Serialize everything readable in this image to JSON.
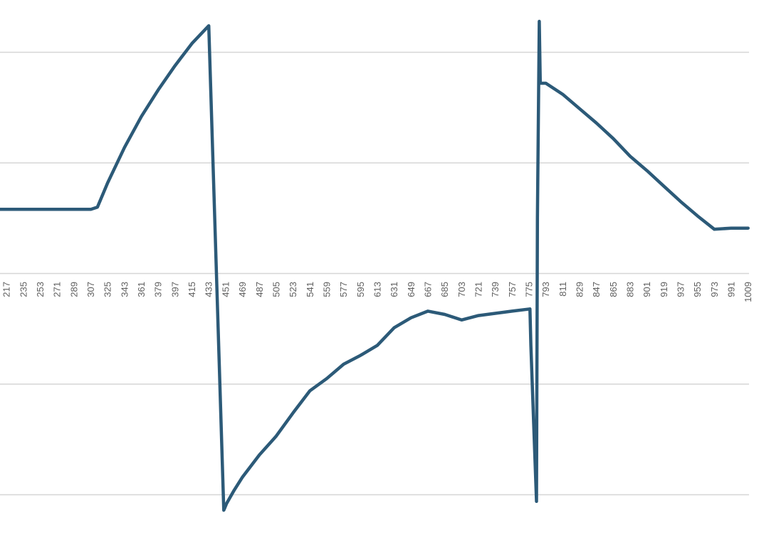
{
  "chart_data": {
    "type": "line",
    "title": "",
    "xlabel": "",
    "ylabel": "",
    "x_tick_labels": [
      "217",
      "235",
      "253",
      "271",
      "289",
      "307",
      "325",
      "343",
      "361",
      "379",
      "397",
      "415",
      "433",
      "451",
      "469",
      "487",
      "505",
      "523",
      "541",
      "559",
      "577",
      "595",
      "613",
      "631",
      "649",
      "667",
      "685",
      "703",
      "721",
      "739",
      "757",
      "775",
      "793",
      "811",
      "829",
      "847",
      "865",
      "883",
      "901",
      "919",
      "937",
      "955",
      "973",
      "991",
      "1009"
    ],
    "x_range": [
      210,
      1010
    ],
    "y_range": [
      -2.1,
      2.2
    ],
    "y_gridlines": [
      -2,
      -1,
      1,
      2
    ],
    "grid": true,
    "legend": "none",
    "series": [
      {
        "color": "#2c5a78",
        "x": [
          210,
          235,
          271,
          307,
          314,
          320,
          325,
          343,
          361,
          379,
          397,
          415,
          433,
          449,
          450,
          452,
          460,
          469,
          487,
          505,
          523,
          541,
          559,
          577,
          595,
          613,
          631,
          649,
          667,
          685,
          703,
          721,
          739,
          757,
          776,
          777,
          780,
          783,
          784,
          786,
          787,
          793,
          811,
          829,
          847,
          865,
          883,
          901,
          919,
          937,
          955,
          973,
          991,
          1009
        ],
        "y": [
          0.58,
          0.58,
          0.58,
          0.58,
          0.6,
          0.72,
          0.82,
          1.14,
          1.42,
          1.66,
          1.88,
          2.08,
          2.24,
          -2.14,
          -2.12,
          -2.08,
          -1.96,
          -1.84,
          -1.64,
          -1.47,
          -1.26,
          -1.06,
          -0.95,
          -0.82,
          -0.74,
          -0.65,
          -0.49,
          -0.4,
          -0.34,
          -0.37,
          -0.42,
          -0.38,
          -0.36,
          -0.34,
          -0.32,
          -0.65,
          -1.35,
          -2.06,
          0.5,
          2.28,
          1.72,
          1.72,
          1.62,
          1.49,
          1.36,
          1.22,
          1.06,
          0.93,
          0.79,
          0.65,
          0.52,
          0.4,
          0.41,
          0.41
        ]
      }
    ]
  }
}
